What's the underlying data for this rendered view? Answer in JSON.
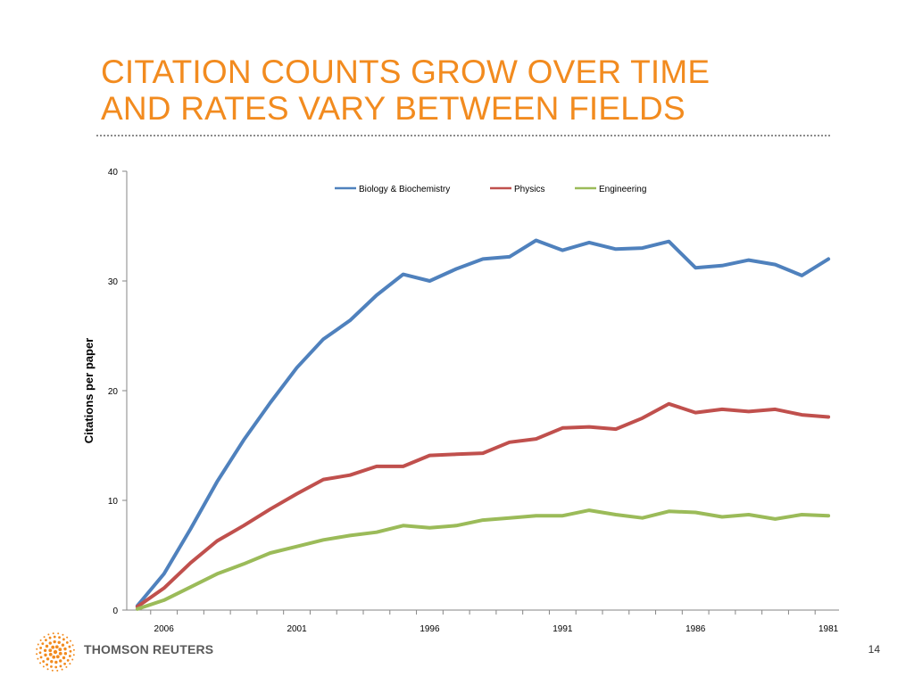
{
  "slide": {
    "title_lines": [
      "CITATION COUNTS GROW OVER TIME",
      "AND RATES VARY BETWEEN FIELDS"
    ],
    "title_color": "#F28B1F",
    "brand_text": "THOMSON REUTERS",
    "brand_color": "#5a5a5a",
    "brand_logo_icon": "thomson-reuters-dot-sphere-icon",
    "brand_logo_color": "#F28B1F",
    "page_number": "14"
  },
  "chart_data": {
    "type": "line",
    "title": "",
    "xlabel": "",
    "ylabel": "Citations per paper",
    "x": [
      2007,
      2006,
      2005,
      2004,
      2003,
      2002,
      2001,
      2000,
      1999,
      1998,
      1997,
      1996,
      1995,
      1994,
      1993,
      1992,
      1991,
      1990,
      1989,
      1988,
      1987,
      1986,
      1985,
      1984,
      1983,
      1982,
      1981
    ],
    "x_axis_reversed": true,
    "xlim": [
      2007.4,
      1980.6
    ],
    "x_ticks": [
      2006,
      2001,
      1996,
      1991,
      1986,
      1981
    ],
    "x_tick_labels": [
      "2006",
      "2001",
      "1996",
      "1991",
      "1986",
      "1981"
    ],
    "ylim": [
      0,
      40
    ],
    "y_ticks": [
      0,
      10,
      20,
      30,
      40
    ],
    "y_tick_labels": [
      "0",
      "10",
      "20",
      "30",
      "40"
    ],
    "grid": false,
    "legend_position": "top-center",
    "series": [
      {
        "name": "Biology & Biochemistry",
        "color": "#4F81BD",
        "values": [
          0.4,
          3.3,
          7.4,
          11.7,
          15.5,
          18.9,
          22.1,
          24.7,
          26.4,
          28.7,
          30.6,
          30.0,
          31.1,
          32.0,
          32.2,
          33.7,
          32.8,
          33.5,
          32.9,
          33.0,
          33.6,
          31.2,
          31.4,
          31.9,
          31.5,
          30.5,
          32.0
        ]
      },
      {
        "name": "Physics",
        "color": "#C0504D",
        "values": [
          0.3,
          2.0,
          4.3,
          6.3,
          7.7,
          9.2,
          10.6,
          11.9,
          12.3,
          13.1,
          13.1,
          14.1,
          14.2,
          14.3,
          15.3,
          15.6,
          16.6,
          16.7,
          16.5,
          17.5,
          18.8,
          18.0,
          18.3,
          18.1,
          18.3,
          17.8,
          17.6
        ]
      },
      {
        "name": "Engineering",
        "color": "#9BBB59",
        "values": [
          0.1,
          0.9,
          2.1,
          3.3,
          4.2,
          5.2,
          5.8,
          6.4,
          6.8,
          7.1,
          7.7,
          7.5,
          7.7,
          8.2,
          8.4,
          8.6,
          8.6,
          9.1,
          8.7,
          8.4,
          9.0,
          8.9,
          8.5,
          8.7,
          8.3,
          8.7,
          8.6
        ]
      }
    ]
  }
}
